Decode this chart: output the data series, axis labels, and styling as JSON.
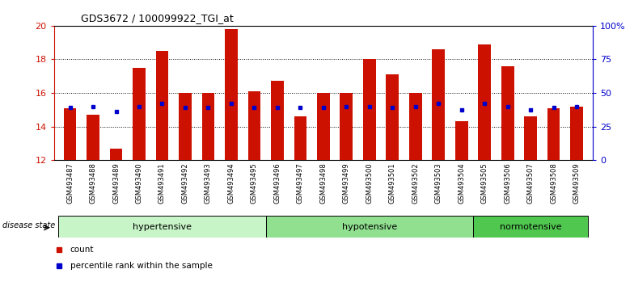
{
  "title": "GDS3672 / 100099922_TGI_at",
  "samples": [
    "GSM493487",
    "GSM493488",
    "GSM493489",
    "GSM493490",
    "GSM493491",
    "GSM493492",
    "GSM493493",
    "GSM493494",
    "GSM493495",
    "GSM493496",
    "GSM493497",
    "GSM493498",
    "GSM493499",
    "GSM493500",
    "GSM493501",
    "GSM493502",
    "GSM493503",
    "GSM493504",
    "GSM493505",
    "GSM493506",
    "GSM493507",
    "GSM493508",
    "GSM493509"
  ],
  "bar_values": [
    15.1,
    14.7,
    12.7,
    17.5,
    18.5,
    16.0,
    16.0,
    19.8,
    16.1,
    16.7,
    14.6,
    16.0,
    16.0,
    18.0,
    17.1,
    16.0,
    18.6,
    14.3,
    18.9,
    17.6,
    14.6,
    15.1,
    15.2
  ],
  "blue_values": [
    15.15,
    15.2,
    14.9,
    15.2,
    15.4,
    15.15,
    15.15,
    15.4,
    15.15,
    15.15,
    15.15,
    15.15,
    15.2,
    15.2,
    15.15,
    15.2,
    15.4,
    15.0,
    15.4,
    15.2,
    15.0,
    15.15,
    15.2
  ],
  "groups": [
    {
      "label": "hypertensive",
      "start": 0,
      "end": 8,
      "color": "#c8f5c8"
    },
    {
      "label": "hypotensive",
      "start": 9,
      "end": 17,
      "color": "#90e090"
    },
    {
      "label": "normotensive",
      "start": 18,
      "end": 22,
      "color": "#50c850"
    }
  ],
  "bar_color": "#cc1100",
  "blue_color": "#0000cc",
  "ylim_left": [
    12,
    20
  ],
  "ylim_right": [
    0,
    100
  ],
  "yticks_left": [
    12,
    14,
    16,
    18,
    20
  ],
  "yticks_right": [
    0,
    25,
    50,
    75,
    100
  ],
  "ytick_labels_right": [
    "0",
    "25",
    "50",
    "75",
    "100%"
  ],
  "bar_width": 0.55,
  "bg_color": "#ffffff",
  "plot_bg_color": "#ffffff",
  "tick_color_left": "#cc1100",
  "tick_color_right": "#0000cc"
}
